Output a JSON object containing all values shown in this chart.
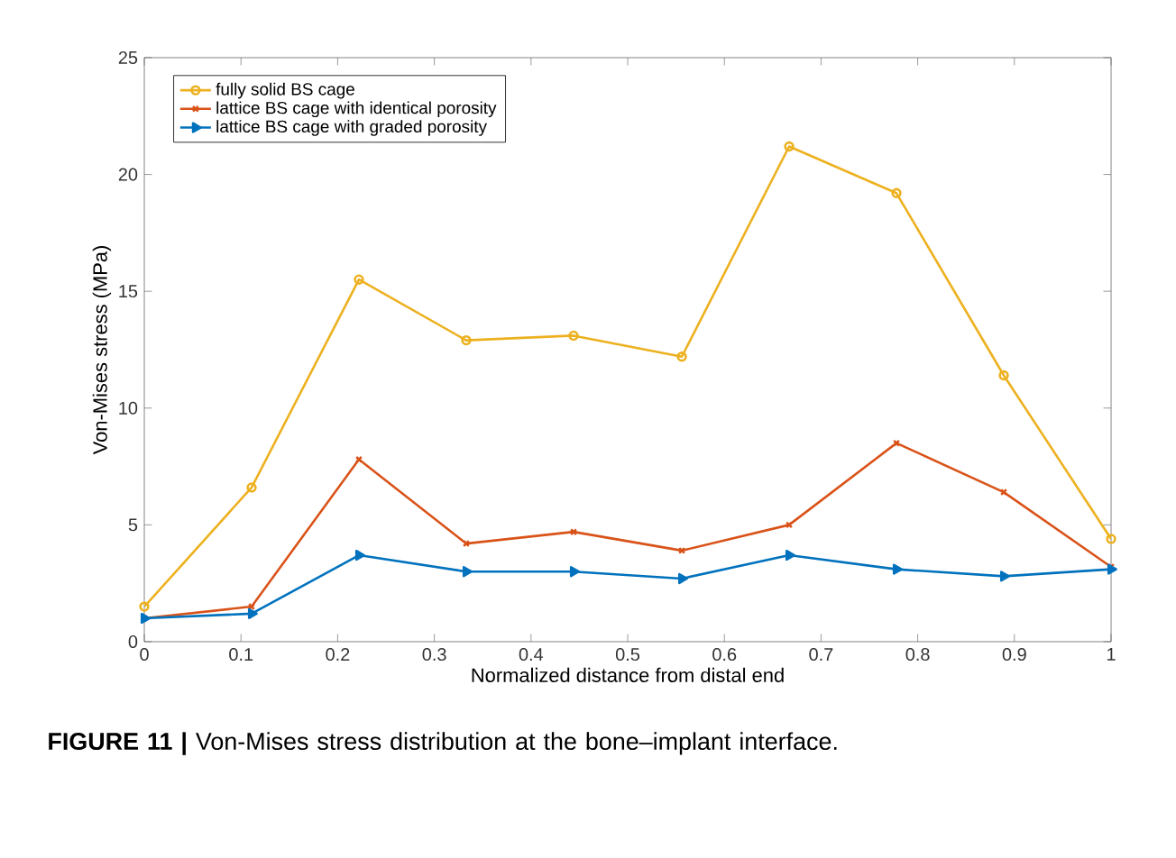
{
  "chart_data": {
    "type": "line",
    "xlabel": "Normalized distance from distal end",
    "ylabel": "Von-Mises stress (MPa)",
    "x": [
      0,
      0.111,
      0.222,
      0.333,
      0.444,
      0.556,
      0.667,
      0.778,
      0.889,
      1
    ],
    "series": [
      {
        "name": "fully solid BS cage",
        "color": "#edb120",
        "marker": "circle",
        "values": [
          1.5,
          6.6,
          15.5,
          12.9,
          13.1,
          12.2,
          21.2,
          19.2,
          11.4,
          4.4
        ]
      },
      {
        "name": "lattice BS cage with identical porosity",
        "color": "#d95319",
        "marker": "cross",
        "values": [
          1.0,
          1.5,
          7.8,
          4.2,
          4.7,
          3.9,
          5.0,
          8.5,
          6.4,
          3.2
        ]
      },
      {
        "name": "lattice BS cage with graded porosity",
        "color": "#0072bd",
        "marker": "triangle",
        "values": [
          1.0,
          1.2,
          3.7,
          3.0,
          3.0,
          2.7,
          3.7,
          3.1,
          2.8,
          3.1
        ]
      }
    ],
    "xlim": [
      0,
      1
    ],
    "ylim": [
      0,
      25
    ],
    "xticks": [
      0,
      0.1,
      0.2,
      0.3,
      0.4,
      0.5,
      0.6,
      0.7,
      0.8,
      0.9,
      1
    ],
    "yticks": [
      0,
      5,
      10,
      15,
      20,
      25
    ],
    "grid": false,
    "legend": "top left",
    "line_style": "solid",
    "annotations": [
      "**FIGURE 11 |** Von-Mises stress distribution at the bone–implant interface."
    ]
  }
}
